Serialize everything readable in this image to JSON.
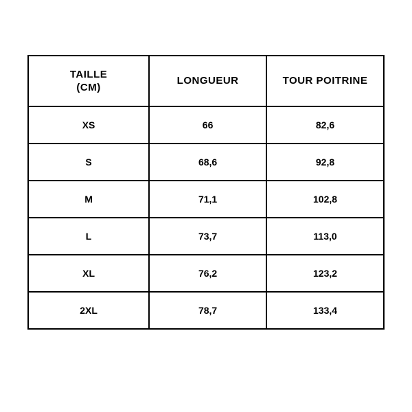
{
  "table": {
    "type": "table",
    "border_color": "#000000",
    "background_color": "#ffffff",
    "text_color": "#000000",
    "header_fontsize": 15,
    "cell_fontsize": 14,
    "font_weight": "700",
    "columns": [
      {
        "key": "size",
        "label_line1": "TAILLE",
        "label_line2": "(CM)",
        "width_pct": 34
      },
      {
        "key": "length",
        "label": "LONGUEUR",
        "width_pct": 33
      },
      {
        "key": "chest",
        "label": "TOUR POITRINE",
        "width_pct": 33
      }
    ],
    "rows": [
      {
        "size": "XS",
        "length": "66",
        "chest": "82,6"
      },
      {
        "size": "S",
        "length": "68,6",
        "chest": "92,8"
      },
      {
        "size": "M",
        "length": "71,1",
        "chest": "102,8"
      },
      {
        "size": "L",
        "length": "73,7",
        "chest": "113,0"
      },
      {
        "size": "XL",
        "length": "76,2",
        "chest": "123,2"
      },
      {
        "size": "2XL",
        "length": "78,7",
        "chest": "133,4"
      }
    ]
  }
}
